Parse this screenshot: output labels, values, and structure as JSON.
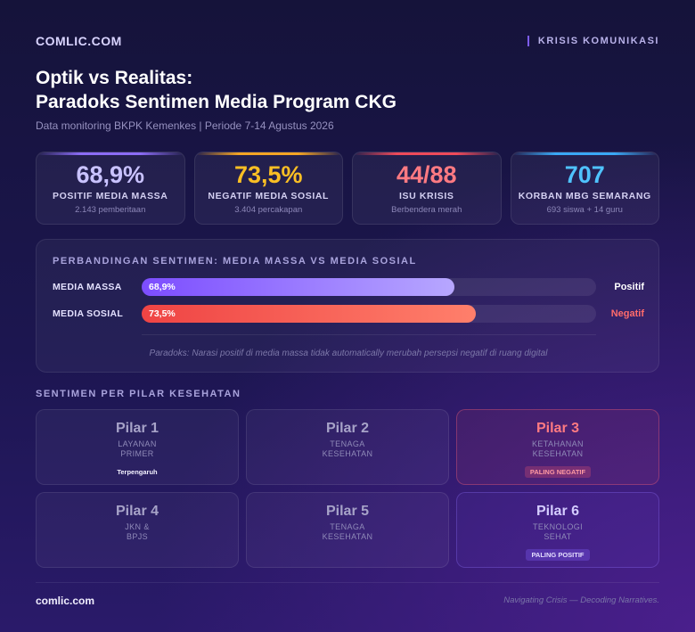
{
  "header": {
    "brand": "COMLIC.COM",
    "tag": "KRISIS KOMUNIKASI"
  },
  "title": {
    "line1": "Optik vs Realitas:",
    "line2": "Paradoks Sentimen Media Program CKG"
  },
  "subtitle": "Data monitoring BKPK Kemenkes | Periode 7-14 Agustus 2026",
  "kpis": [
    {
      "value": "68,9%",
      "label": "POSITIF MEDIA MASSA",
      "sub": "2.143 pemberitaan",
      "color": "#c9c2ff",
      "accent": "#8b6cf6"
    },
    {
      "value": "73,5%",
      "label": "NEGATIF MEDIA SOSIAL",
      "sub": "3.404 percakapan",
      "color": "#fbbf24",
      "accent": "#f5a524"
    },
    {
      "value": "44/88",
      "label": "ISU KRISIS",
      "sub": "Berbendera merah",
      "color": "#ff7a82",
      "accent": "#ef4a5a"
    },
    {
      "value": "707",
      "label": "KORBAN MBG SEMARANG",
      "sub": "693 siswa + 14 guru",
      "color": "#4fc3ff",
      "accent": "#3aa8f5"
    }
  ],
  "comparison": {
    "title": "PERBANDINGAN SENTIMEN: MEDIA MASSA VS MEDIA SOSIAL",
    "rows": [
      {
        "label": "MEDIA MASSA",
        "value_text": "68,9%",
        "value": 0.689,
        "result": "Positif",
        "result_color": "#ffffff",
        "gradient": [
          "#7c4dff",
          "#b7a7ff"
        ]
      },
      {
        "label": "MEDIA SOSIAL",
        "value_text": "73,5%",
        "value": 0.735,
        "result": "Negatif",
        "result_color": "#ff6b6b",
        "gradient": [
          "#ef4444",
          "#ff7f6b"
        ]
      }
    ],
    "note": "Paradoks: Narasi positif di media massa tidak automatically merubah persepsi negatif di ruang digital"
  },
  "pilar": {
    "title": "SENTIMEN PER PILAR KESEHATAN",
    "cards": [
      {
        "name": "Pilar 1",
        "desc": "LAYANAN\nPRIMER",
        "badge": "Terpengaruh",
        "kind": "plain"
      },
      {
        "name": "Pilar 2",
        "desc": "TENAGA\nKESEHATAN",
        "badge": "",
        "kind": "normal"
      },
      {
        "name": "Pilar 3",
        "desc": "KETAHANAN\nKESEHATAN",
        "badge": "PALING NEGATIF",
        "kind": "neg"
      },
      {
        "name": "Pilar 4",
        "desc": "JKN &\nBPJS",
        "badge": "",
        "kind": "normal"
      },
      {
        "name": "Pilar 5",
        "desc": "TENAGA\nKESEHATAN",
        "badge": "",
        "kind": "normal"
      },
      {
        "name": "Pilar 6",
        "desc": "TEKNOLOGI\nSEHAT",
        "badge": "PALING POSITIF",
        "kind": "pos"
      }
    ]
  },
  "footer": {
    "brand": "comlic.com",
    "tagline": "Navigating Crisis — Decoding Narratives."
  }
}
